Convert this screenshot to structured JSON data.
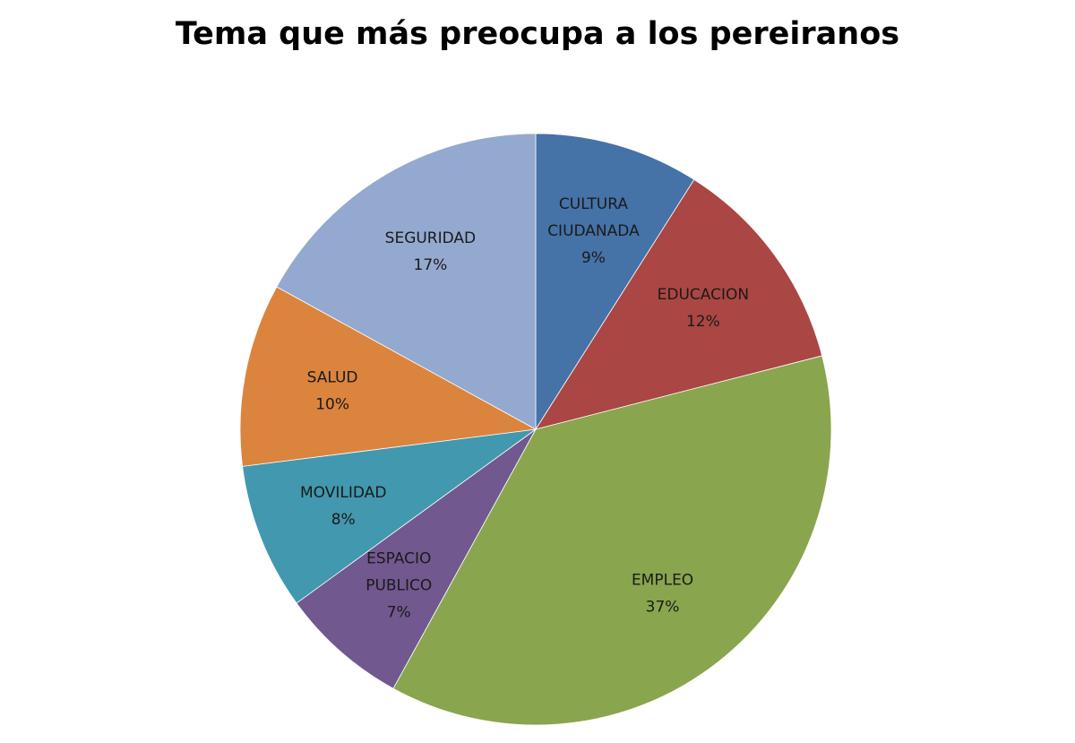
{
  "chart_data": {
    "type": "pie",
    "title": "Tema que más preocupa a los pereiranos",
    "slices": [
      {
        "label_lines": [
          "CULTURA",
          "CIUDANADA"
        ],
        "pct_label": "9%",
        "value": 9,
        "color": "#4572a7"
      },
      {
        "label_lines": [
          "EDUCACION"
        ],
        "pct_label": "12%",
        "value": 12,
        "color": "#aa4643"
      },
      {
        "label_lines": [
          "EMPLEO"
        ],
        "pct_label": "37%",
        "value": 37,
        "color": "#89a54e"
      },
      {
        "label_lines": [
          "ESPACIO",
          "PUBLICO"
        ],
        "pct_label": "7%",
        "value": 7,
        "color": "#71588f"
      },
      {
        "label_lines": [
          "MOVILIDAD"
        ],
        "pct_label": "8%",
        "value": 8,
        "color": "#4198af"
      },
      {
        "label_lines": [
          "SALUD"
        ],
        "pct_label": "10%",
        "value": 10,
        "color": "#db843d"
      },
      {
        "label_lines": [
          "SEGURIDAD"
        ],
        "pct_label": "17%",
        "value": 17,
        "color": "#93a9cf"
      }
    ],
    "start_angle": "12 o'clock",
    "direction": "clockwise",
    "legend": "none"
  }
}
